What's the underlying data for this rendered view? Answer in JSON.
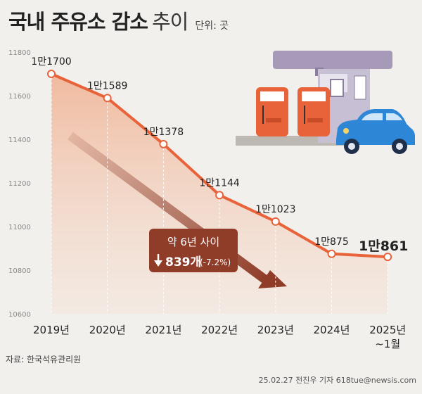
{
  "title": "국내 주유소 감소",
  "title_suffix": "추이",
  "unit_label": "단위: 곳",
  "source": "자료: 한국석유관리원",
  "byline": "25.02.27 전진우 기자 618tue@newsis.com",
  "colors": {
    "line": "#e8623a",
    "area": "#f4c9b4",
    "callout_bg": "#8f3c28",
    "arrow": "#8f3c28",
    "pump": "#e8623a",
    "car": "#2e86d6",
    "station": "#a79ab8"
  },
  "callout": {
    "line1": "약 6년 사이",
    "value": "839개",
    "pct": "(-7.2%)",
    "arrow_icon": "down-arrow-icon"
  },
  "chart_data": {
    "type": "line",
    "categories": [
      "2019년",
      "2020년",
      "2021년",
      "2022년",
      "2023년",
      "2024년",
      "2025년"
    ],
    "category_sub": [
      "",
      "",
      "",
      "",
      "",
      "",
      "~1월"
    ],
    "values": [
      11700,
      11589,
      11378,
      11144,
      11023,
      10875,
      10861
    ],
    "data_labels": [
      "1만1700",
      "1만1589",
      "1만1378",
      "1만1144",
      "1만1023",
      "1만875",
      "1만861"
    ],
    "yticks": [
      11800,
      11600,
      11400,
      11200,
      11000,
      10800,
      10600
    ],
    "ylim": [
      10600,
      11800
    ],
    "grid": false,
    "illustration": [
      "gas-station-icon",
      "fuel-pump-icon",
      "car-icon"
    ]
  }
}
